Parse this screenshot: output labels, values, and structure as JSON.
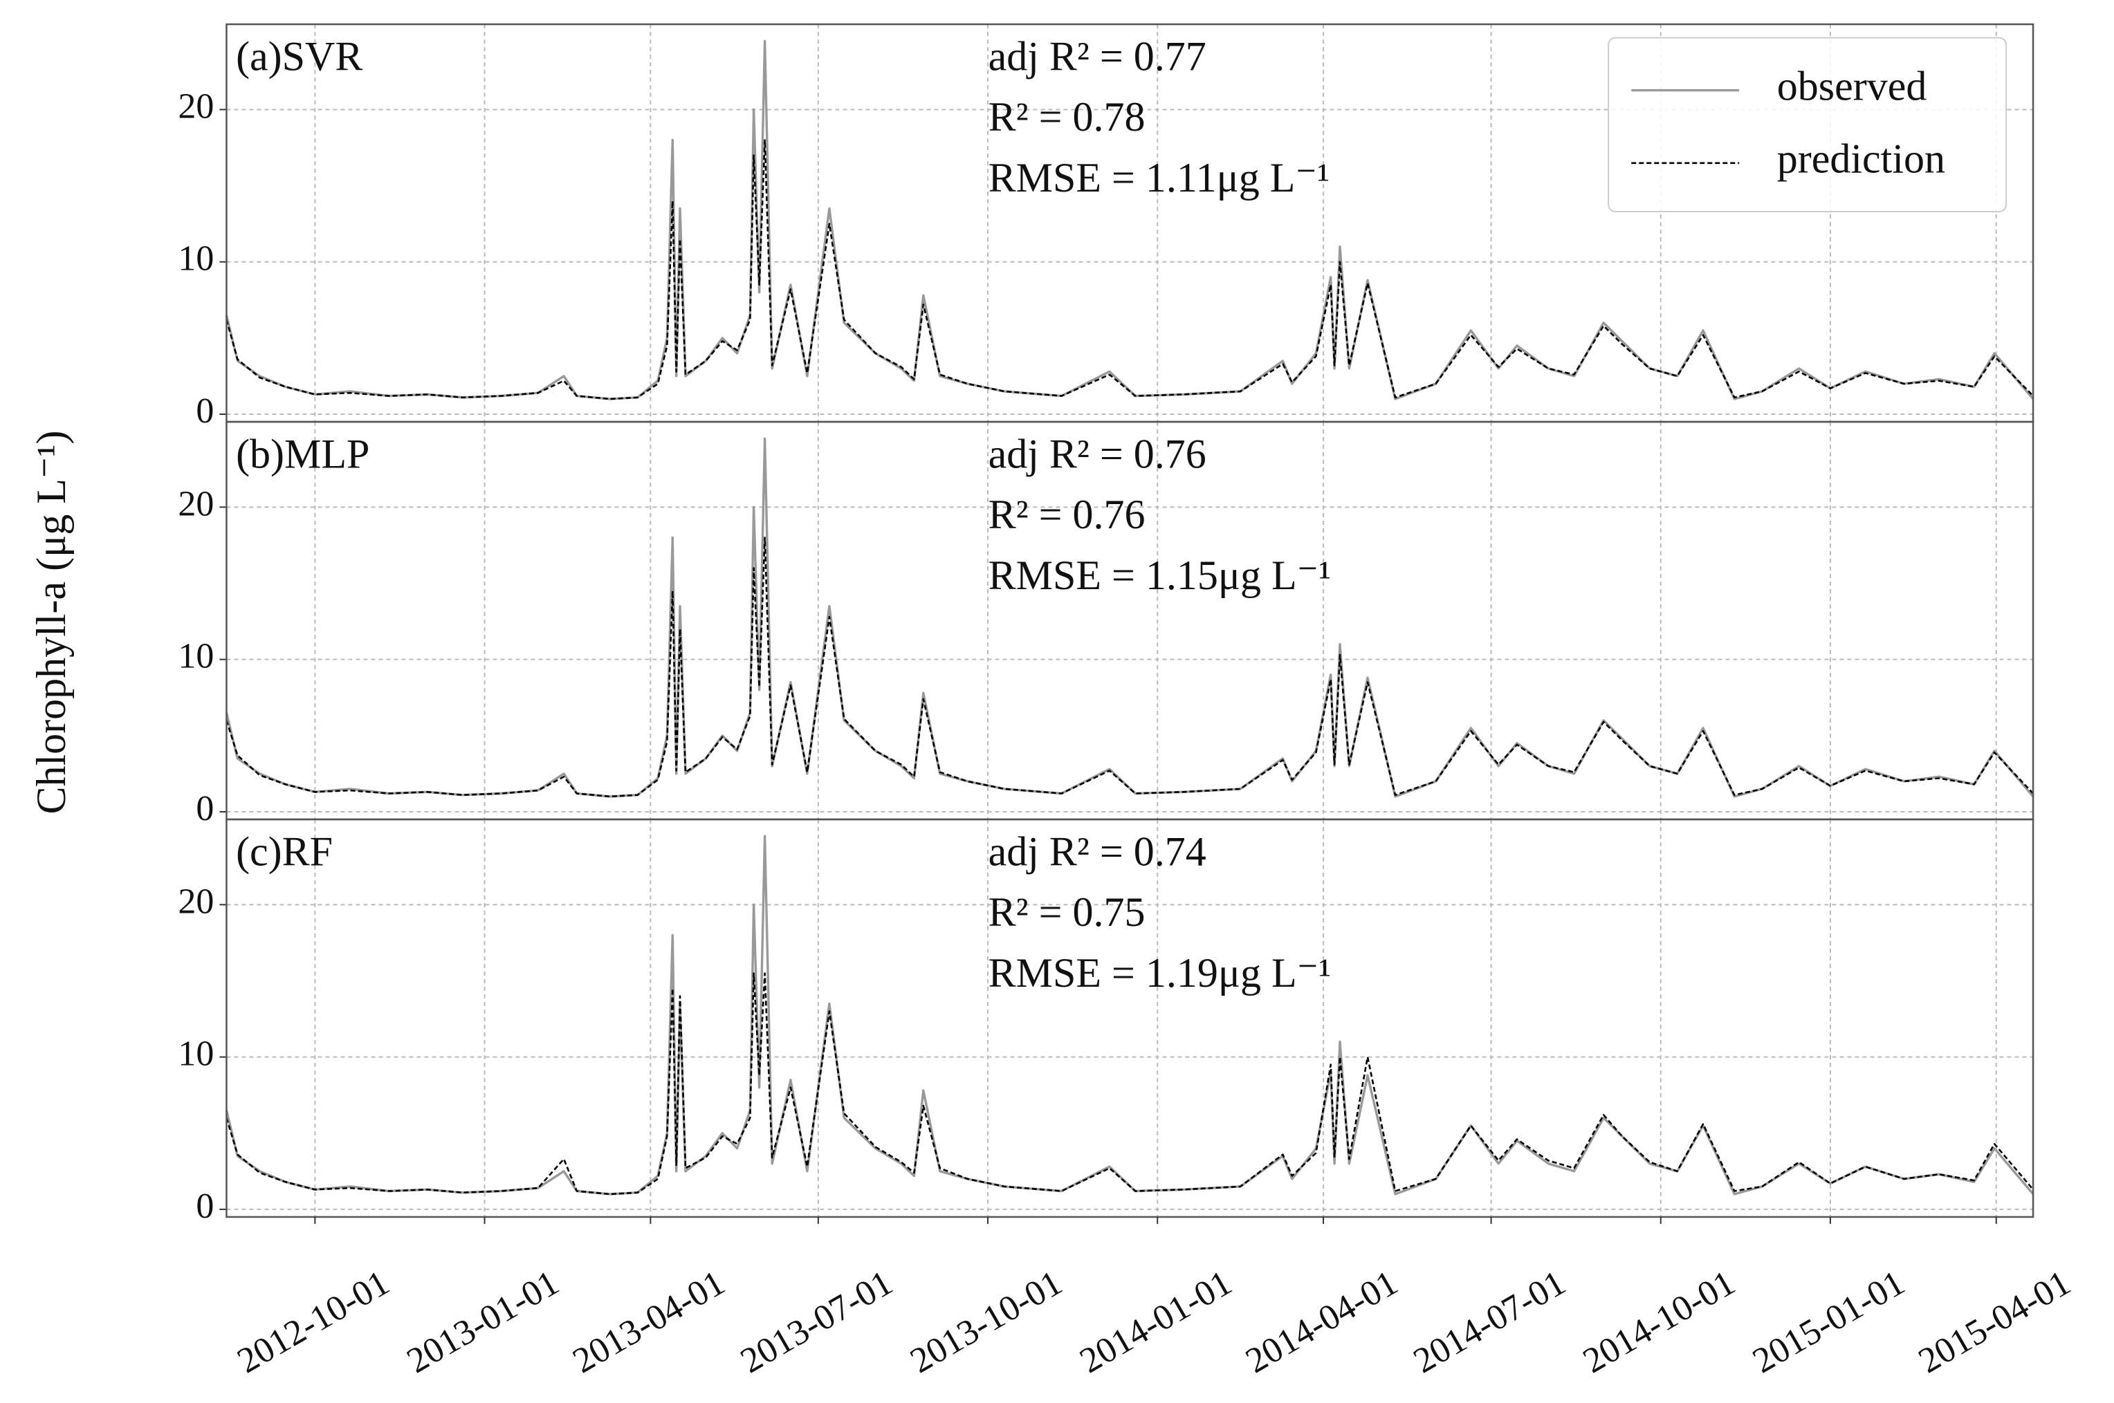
{
  "chart_data": {
    "type": "line",
    "ylabel": "Chlorophyll-a (μg L⁻¹)",
    "x": [
      "2012-08-14",
      "2012-08-20",
      "2012-09-01",
      "2012-09-15",
      "2012-10-01",
      "2012-10-20",
      "2012-11-10",
      "2012-12-01",
      "2012-12-20",
      "2013-01-10",
      "2013-01-30",
      "2013-02-13",
      "2013-02-20",
      "2013-03-10",
      "2013-03-25",
      "2013-04-05",
      "2013-04-10",
      "2013-04-13",
      "2013-04-15",
      "2013-04-17",
      "2013-04-20",
      "2013-05-01",
      "2013-05-10",
      "2013-05-18",
      "2013-05-25",
      "2013-05-27",
      "2013-05-30",
      "2013-06-02",
      "2013-06-06",
      "2013-06-16",
      "2013-06-25",
      "2013-07-07",
      "2013-07-15",
      "2013-08-01",
      "2013-08-15",
      "2013-08-22",
      "2013-08-27",
      "2013-09-05",
      "2013-09-20",
      "2013-10-10",
      "2013-11-10",
      "2013-12-06",
      "2013-12-20",
      "2014-01-15",
      "2014-02-15",
      "2014-03-10",
      "2014-03-15",
      "2014-03-28",
      "2014-04-05",
      "2014-04-07",
      "2014-04-10",
      "2014-04-15",
      "2014-04-25",
      "2014-05-10",
      "2014-06-01",
      "2014-06-20",
      "2014-07-05",
      "2014-07-15",
      "2014-08-01",
      "2014-08-15",
      "2014-08-31",
      "2014-09-10",
      "2014-09-25",
      "2014-10-10",
      "2014-10-24",
      "2014-11-10",
      "2014-11-25",
      "2014-12-15",
      "2015-01-01",
      "2015-01-20",
      "2015-02-10",
      "2015-03-01",
      "2015-03-20",
      "2015-03-31",
      "2015-04-21"
    ],
    "xlim": [
      "2012-08-14",
      "2015-04-21"
    ],
    "xticks": [
      "2012-10-01",
      "2013-01-01",
      "2013-04-01",
      "2013-07-01",
      "2013-10-01",
      "2014-01-01",
      "2014-04-01",
      "2014-07-01",
      "2014-10-01",
      "2015-01-01",
      "2015-04-01"
    ],
    "grid": true,
    "legend": {
      "corner": "upper right",
      "entries": [
        {
          "name": "observed",
          "color": "#999999",
          "dashed": false
        },
        {
          "name": "prediction",
          "color": "#000000",
          "dashed": true
        }
      ]
    },
    "panels": [
      {
        "title": "(a)SVR",
        "annotations": [
          "adj R² = 0.77",
          "R² = 0.78",
          "RMSE = 1.11μg L⁻¹"
        ],
        "ylim": [
          -0.5,
          25.6
        ],
        "yticks": [
          0,
          10,
          20
        ],
        "series": [
          {
            "values": [
              6.5,
              3.5,
              2.5,
              1.8,
              1.3,
              1.5,
              1.2,
              1.3,
              1.1,
              1.2,
              1.4,
              2.5,
              1.2,
              1.0,
              1.1,
              2.2,
              5,
              18,
              2.5,
              13.5,
              2.5,
              3.5,
              5,
              4,
              6.5,
              20,
              8,
              24.5,
              3,
              8.5,
              2.5,
              13.5,
              6,
              4,
              3,
              2.2,
              7.8,
              2.5,
              2,
              1.5,
              1.2,
              2.8,
              1.2,
              1.3,
              1.5,
              3.5,
              2,
              4,
              9,
              3,
              11,
              3,
              8.8,
              1,
              2,
              5.5,
              3,
              4.5,
              3,
              2.5,
              6,
              4.8,
              3,
              2.5,
              5.5,
              1,
              1.5,
              3,
              1.7,
              2.8,
              2,
              2.3,
              1.8,
              4,
              1
            ]
          },
          {
            "values": [
              6.2,
              3.6,
              2.4,
              1.8,
              1.3,
              1.4,
              1.2,
              1.3,
              1.1,
              1.2,
              1.4,
              2.2,
              1.2,
              1.0,
              1.1,
              2.0,
              4.5,
              14,
              2.8,
              11.5,
              2.6,
              3.5,
              4.8,
              4.2,
              6.2,
              17,
              8.5,
              18,
              3.2,
              8.2,
              2.7,
              12.5,
              6.2,
              4,
              3.1,
              2.3,
              7.2,
              2.6,
              2,
              1.5,
              1.2,
              2.6,
              1.2,
              1.3,
              1.5,
              3.3,
              2.1,
              3.8,
              8.5,
              3.2,
              10,
              3.2,
              8.6,
              1.1,
              2,
              5.2,
              3.1,
              4.3,
              3,
              2.6,
              5.8,
              4.6,
              3,
              2.5,
              5.2,
              1.1,
              1.5,
              2.8,
              1.7,
              2.7,
              2,
              2.2,
              1.8,
              3.8,
              1.2
            ]
          }
        ]
      },
      {
        "title": "(b)MLP",
        "annotations": [
          "adj R² = 0.76",
          "R² = 0.76",
          "RMSE = 1.15μg L⁻¹"
        ],
        "ylim": [
          -0.5,
          25.6
        ],
        "yticks": [
          0,
          10,
          20
        ],
        "series": [
          {
            "values": [
              6.5,
              3.5,
              2.5,
              1.8,
              1.3,
              1.5,
              1.2,
              1.3,
              1.1,
              1.2,
              1.4,
              2.5,
              1.2,
              1.0,
              1.1,
              2.2,
              5,
              18,
              2.5,
              13.5,
              2.5,
              3.5,
              5,
              4,
              6.5,
              20,
              8,
              24.5,
              3,
              8.5,
              2.5,
              13.5,
              6,
              4,
              3,
              2.2,
              7.8,
              2.5,
              2,
              1.5,
              1.2,
              2.8,
              1.2,
              1.3,
              1.5,
              3.5,
              2,
              4,
              9,
              3,
              11,
              3,
              8.8,
              1,
              2,
              5.5,
              3,
              4.5,
              3,
              2.5,
              6,
              4.8,
              3,
              2.5,
              5.5,
              1,
              1.5,
              3,
              1.7,
              2.8,
              2,
              2.3,
              1.8,
              4,
              1
            ]
          },
          {
            "values": [
              6.0,
              3.7,
              2.4,
              1.8,
              1.3,
              1.4,
              1.2,
              1.3,
              1.1,
              1.2,
              1.4,
              2.3,
              1.2,
              1.0,
              1.1,
              2.1,
              4.6,
              14.5,
              2.7,
              12,
              2.6,
              3.5,
              4.9,
              4.1,
              6.3,
              16,
              8.2,
              18,
              3.1,
              8.3,
              2.6,
              12.8,
              6.1,
              4,
              3.1,
              2.3,
              7.4,
              2.6,
              2,
              1.5,
              1.2,
              2.7,
              1.2,
              1.3,
              1.5,
              3.4,
              2.1,
              3.9,
              8.7,
              3.1,
              10.3,
              3.1,
              8.5,
              1.1,
              2,
              5.3,
              3.1,
              4.4,
              3,
              2.6,
              5.9,
              4.7,
              3,
              2.5,
              5.3,
              1.1,
              1.5,
              2.9,
              1.7,
              2.7,
              2,
              2.2,
              1.8,
              3.9,
              1.2
            ]
          }
        ]
      },
      {
        "title": "(c)RF",
        "annotations": [
          "adj R² = 0.74",
          "R² = 0.75",
          "RMSE = 1.19μg L⁻¹"
        ],
        "ylim": [
          -0.5,
          25.6
        ],
        "yticks": [
          0,
          10,
          20
        ],
        "series": [
          {
            "values": [
              6.5,
              3.5,
              2.5,
              1.8,
              1.3,
              1.5,
              1.2,
              1.3,
              1.1,
              1.2,
              1.4,
              2.5,
              1.2,
              1.0,
              1.1,
              2.2,
              5,
              18,
              2.5,
              13.5,
              2.5,
              3.5,
              5,
              4,
              6.5,
              20,
              8,
              24.5,
              3,
              8.5,
              2.5,
              13.5,
              6,
              4,
              3,
              2.2,
              7.8,
              2.5,
              2,
              1.5,
              1.2,
              2.8,
              1.2,
              1.3,
              1.5,
              3.5,
              2,
              4,
              9,
              3,
              11,
              3,
              8.8,
              1,
              2,
              5.5,
              3,
              4.5,
              3,
              2.5,
              6,
              4.8,
              3,
              2.5,
              5.5,
              1,
              1.5,
              3,
              1.7,
              2.8,
              2,
              2.3,
              1.8,
              4,
              1
            ]
          },
          {
            "values": [
              6.0,
              3.6,
              2.4,
              1.8,
              1.3,
              1.4,
              1.2,
              1.3,
              1.1,
              1.2,
              1.4,
              3.3,
              1.2,
              1.0,
              1.1,
              2.0,
              4.8,
              14.5,
              2.9,
              14,
              2.7,
              3.4,
              4.8,
              4.3,
              6.0,
              15.5,
              8.8,
              15.5,
              3.4,
              8.0,
              2.8,
              13,
              6.3,
              4.1,
              3.1,
              2.4,
              6.8,
              2.7,
              2,
              1.5,
              1.2,
              2.7,
              1.2,
              1.3,
              1.5,
              3.6,
              2.2,
              3.7,
              9.5,
              3.4,
              10,
              3.3,
              10,
              1.2,
              2,
              5.5,
              3.2,
              4.6,
              3.2,
              2.7,
              6.2,
              4.8,
              3.1,
              2.5,
              5.6,
              1.2,
              1.5,
              3.1,
              1.7,
              2.8,
              2,
              2.3,
              1.9,
              4.3,
              1.3
            ]
          }
        ]
      }
    ]
  }
}
